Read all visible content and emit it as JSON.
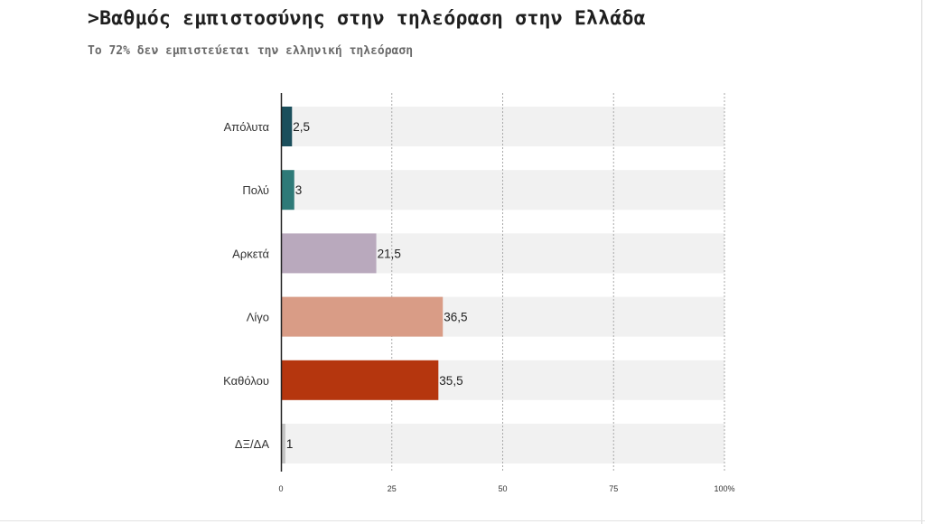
{
  "title": ">Βαθμός εμπιστοσύνης στην τηλεόραση στην Ελλάδα",
  "subtitle": "Το 72% δεν εμπιστεύεται την ελληνική τηλεόραση",
  "chart_data": {
    "type": "bar",
    "orientation": "horizontal",
    "categories": [
      "Απόλυτα",
      "Πολύ",
      "Αρκετά",
      "Λίγο",
      "Καθόλου",
      "ΔΞ/ΔΑ"
    ],
    "values": [
      2.5,
      3,
      21.5,
      36.5,
      35.5,
      1
    ],
    "value_labels": [
      "2,5",
      "3",
      "21,5",
      "36,5",
      "35,5",
      "1"
    ],
    "colors": [
      "#1b4f5c",
      "#2e7a78",
      "#b9a9bd",
      "#d99c86",
      "#b5360e",
      "#c4c4c4"
    ],
    "track_color": "#f1f1f1",
    "xlim": [
      0,
      100
    ],
    "xticks": [
      0,
      25,
      50,
      75,
      100
    ],
    "xtick_labels": [
      "0",
      "25",
      "50",
      "75",
      "100%"
    ],
    "grid": "vertical dashed",
    "legend": "none"
  }
}
